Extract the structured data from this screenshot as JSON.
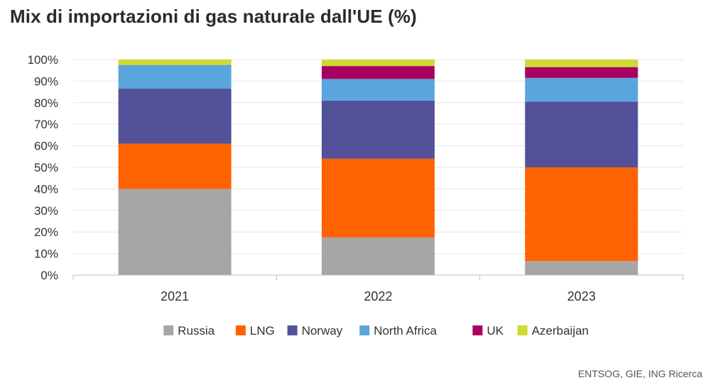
{
  "title": "Mix di importazioni di gas naturale dall'UE (%)",
  "source": "ENTSOG, GIE, ING Ricerca",
  "chart_data": {
    "type": "bar",
    "stacked": true,
    "categories": [
      "2021",
      "2022",
      "2023"
    ],
    "ylim": [
      0,
      100
    ],
    "yticks": [
      "0%",
      "10%",
      "20%",
      "30%",
      "40%",
      "50%",
      "60%",
      "70%",
      "80%",
      "90%",
      "100%"
    ],
    "grid": true,
    "legend_position": "bottom",
    "series": [
      {
        "name": "Russia",
        "color": "#a6a6a6",
        "values": [
          40,
          17.5,
          6.5
        ]
      },
      {
        "name": "LNG",
        "color": "#ff6200",
        "values": [
          21,
          36.5,
          43.5
        ]
      },
      {
        "name": "Norway",
        "color": "#525199",
        "values": [
          25.5,
          27,
          30.5
        ]
      },
      {
        "name": "North Africa",
        "color": "#5aa5dd",
        "values": [
          11,
          10,
          11
        ]
      },
      {
        "name": "UK",
        "color": "#a8005f",
        "values": [
          0,
          6,
          5
        ]
      },
      {
        "name": "Azerbaijan",
        "color": "#d0d932",
        "values": [
          2.5,
          3,
          3.5
        ]
      }
    ]
  }
}
